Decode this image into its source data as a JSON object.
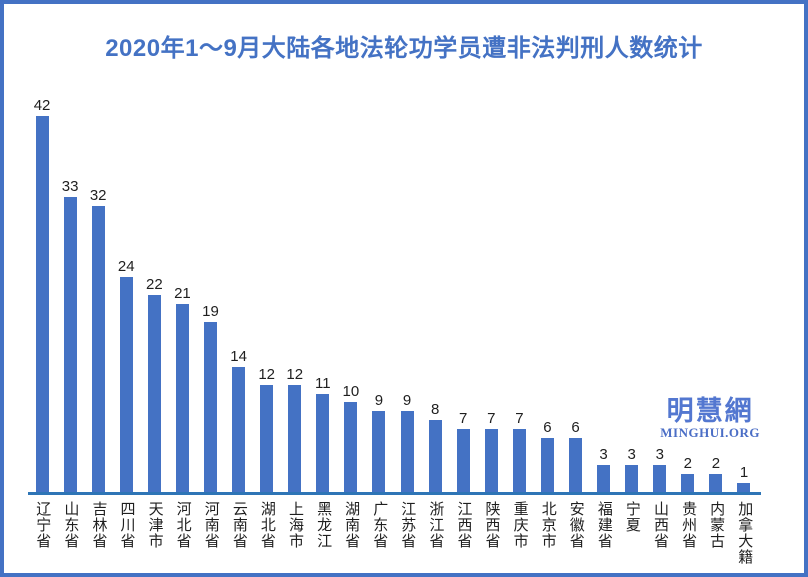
{
  "title": "2020年1～9月大陆各地法轮功学员遭非法判刑人数统计",
  "watermark": {
    "name": "明慧網",
    "site": "MINGHUI.ORG"
  },
  "colors": {
    "frame_border": "#4472C4",
    "title": "#4472C4",
    "bar": "#4472C4",
    "axis_line": "#2E75B6",
    "value_label": "#1f1f1f",
    "category_label": "#1f1f1f",
    "watermark": "#5377D0"
  },
  "chart_data": {
    "type": "bar",
    "title": "2020年1～9月大陆各地法轮功学员遭非法判刑人数统计",
    "categories": [
      "辽宁省",
      "山东省",
      "吉林省",
      "四川省",
      "天津市",
      "河北省",
      "河南省",
      "云南省",
      "湖北省",
      "上海市",
      "黑龙江",
      "湖南省",
      "广东省",
      "江苏省",
      "浙江省",
      "江西省",
      "陕西省",
      "重庆市",
      "北京市",
      "安徽省",
      "福建省",
      "宁夏",
      "山西省",
      "贵州省",
      "内蒙古",
      "加拿大籍"
    ],
    "values": [
      42,
      33,
      32,
      24,
      22,
      21,
      19,
      14,
      12,
      12,
      11,
      10,
      9,
      9,
      8,
      7,
      7,
      7,
      6,
      6,
      3,
      3,
      3,
      2,
      2,
      1
    ],
    "xlabel": "",
    "ylabel": "",
    "ylim": [
      0,
      42
    ],
    "grid": false,
    "legend_position": "none",
    "data_labels": true,
    "bar_color": "#4472C4",
    "category_label_orientation": "vertical"
  }
}
